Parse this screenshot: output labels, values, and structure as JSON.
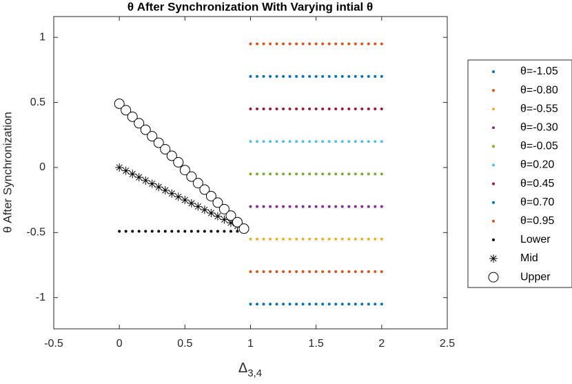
{
  "chart_data": {
    "type": "scatter",
    "title": "θ After Synchronization With Varying intial θ",
    "xlabel": {
      "text": "Δ",
      "subscript": "3,4"
    },
    "ylabel": "θ After Synchronization",
    "xlim": [
      -0.5,
      2.5
    ],
    "ylim": [
      -1.24,
      1.16
    ],
    "xticks": [
      -0.5,
      0,
      0.5,
      1,
      1.5,
      2,
      2.5
    ],
    "yticks": [
      -1,
      -0.5,
      0,
      0.5,
      1
    ],
    "legend": "outside-right",
    "series": [
      {
        "name": "θ=-1.05",
        "color": "#0072BD",
        "marker": "dot",
        "x": [
          1,
          1.05,
          1.1,
          1.15,
          1.2,
          1.25,
          1.3,
          1.35,
          1.4,
          1.45,
          1.5,
          1.55,
          1.6,
          1.65,
          1.7,
          1.75,
          1.8,
          1.85,
          1.9,
          1.95,
          2
        ],
        "values": [
          -1.05,
          -1.05,
          -1.05,
          -1.05,
          -1.05,
          -1.05,
          -1.05,
          -1.05,
          -1.05,
          -1.05,
          -1.05,
          -1.05,
          -1.05,
          -1.05,
          -1.05,
          -1.05,
          -1.05,
          -1.05,
          -1.05,
          -1.05,
          -1.05
        ]
      },
      {
        "name": "θ=-0.80",
        "color": "#D95319",
        "marker": "dot",
        "x": [
          1,
          1.05,
          1.1,
          1.15,
          1.2,
          1.25,
          1.3,
          1.35,
          1.4,
          1.45,
          1.5,
          1.55,
          1.6,
          1.65,
          1.7,
          1.75,
          1.8,
          1.85,
          1.9,
          1.95,
          2
        ],
        "values": [
          -0.8,
          -0.8,
          -0.8,
          -0.8,
          -0.8,
          -0.8,
          -0.8,
          -0.8,
          -0.8,
          -0.8,
          -0.8,
          -0.8,
          -0.8,
          -0.8,
          -0.8,
          -0.8,
          -0.8,
          -0.8,
          -0.8,
          -0.8,
          -0.8
        ]
      },
      {
        "name": "θ=-0.55",
        "color": "#EDB120",
        "marker": "dot",
        "x": [
          1,
          1.05,
          1.1,
          1.15,
          1.2,
          1.25,
          1.3,
          1.35,
          1.4,
          1.45,
          1.5,
          1.55,
          1.6,
          1.65,
          1.7,
          1.75,
          1.8,
          1.85,
          1.9,
          1.95,
          2
        ],
        "values": [
          -0.55,
          -0.55,
          -0.55,
          -0.55,
          -0.55,
          -0.55,
          -0.55,
          -0.55,
          -0.55,
          -0.55,
          -0.55,
          -0.55,
          -0.55,
          -0.55,
          -0.55,
          -0.55,
          -0.55,
          -0.55,
          -0.55,
          -0.55,
          -0.55
        ]
      },
      {
        "name": "θ=-0.30",
        "color": "#7E2F8E",
        "marker": "dot",
        "x": [
          1,
          1.05,
          1.1,
          1.15,
          1.2,
          1.25,
          1.3,
          1.35,
          1.4,
          1.45,
          1.5,
          1.55,
          1.6,
          1.65,
          1.7,
          1.75,
          1.8,
          1.85,
          1.9,
          1.95,
          2
        ],
        "values": [
          -0.3,
          -0.3,
          -0.3,
          -0.3,
          -0.3,
          -0.3,
          -0.3,
          -0.3,
          -0.3,
          -0.3,
          -0.3,
          -0.3,
          -0.3,
          -0.3,
          -0.3,
          -0.3,
          -0.3,
          -0.3,
          -0.3,
          -0.3,
          -0.3
        ]
      },
      {
        "name": "θ=-0.05",
        "color": "#77AC30",
        "marker": "dot",
        "x": [
          1,
          1.05,
          1.1,
          1.15,
          1.2,
          1.25,
          1.3,
          1.35,
          1.4,
          1.45,
          1.5,
          1.55,
          1.6,
          1.65,
          1.7,
          1.75,
          1.8,
          1.85,
          1.9,
          1.95,
          2
        ],
        "values": [
          -0.05,
          -0.05,
          -0.05,
          -0.05,
          -0.05,
          -0.05,
          -0.05,
          -0.05,
          -0.05,
          -0.05,
          -0.05,
          -0.05,
          -0.05,
          -0.05,
          -0.05,
          -0.05,
          -0.05,
          -0.05,
          -0.05,
          -0.05,
          -0.05
        ]
      },
      {
        "name": "θ=0.20",
        "color": "#4DBEEE",
        "marker": "dot",
        "x": [
          1,
          1.05,
          1.1,
          1.15,
          1.2,
          1.25,
          1.3,
          1.35,
          1.4,
          1.45,
          1.5,
          1.55,
          1.6,
          1.65,
          1.7,
          1.75,
          1.8,
          1.85,
          1.9,
          1.95,
          2
        ],
        "values": [
          0.2,
          0.2,
          0.2,
          0.2,
          0.2,
          0.2,
          0.2,
          0.2,
          0.2,
          0.2,
          0.2,
          0.2,
          0.2,
          0.2,
          0.2,
          0.2,
          0.2,
          0.2,
          0.2,
          0.2,
          0.2
        ]
      },
      {
        "name": "θ=0.45",
        "color": "#A2142F",
        "marker": "dot",
        "x": [
          1,
          1.05,
          1.1,
          1.15,
          1.2,
          1.25,
          1.3,
          1.35,
          1.4,
          1.45,
          1.5,
          1.55,
          1.6,
          1.65,
          1.7,
          1.75,
          1.8,
          1.85,
          1.9,
          1.95,
          2
        ],
        "values": [
          0.45,
          0.45,
          0.45,
          0.45,
          0.45,
          0.45,
          0.45,
          0.45,
          0.45,
          0.45,
          0.45,
          0.45,
          0.45,
          0.45,
          0.45,
          0.45,
          0.45,
          0.45,
          0.45,
          0.45,
          0.45
        ]
      },
      {
        "name": "θ=0.70",
        "color": "#0072BD",
        "marker": "dot",
        "x": [
          1,
          1.05,
          1.1,
          1.15,
          1.2,
          1.25,
          1.3,
          1.35,
          1.4,
          1.45,
          1.5,
          1.55,
          1.6,
          1.65,
          1.7,
          1.75,
          1.8,
          1.85,
          1.9,
          1.95,
          2
        ],
        "values": [
          0.7,
          0.7,
          0.7,
          0.7,
          0.7,
          0.7,
          0.7,
          0.7,
          0.7,
          0.7,
          0.7,
          0.7,
          0.7,
          0.7,
          0.7,
          0.7,
          0.7,
          0.7,
          0.7,
          0.7,
          0.7
        ]
      },
      {
        "name": "θ=0.95",
        "color": "#D95319",
        "marker": "dot",
        "x": [
          1,
          1.05,
          1.1,
          1.15,
          1.2,
          1.25,
          1.3,
          1.35,
          1.4,
          1.45,
          1.5,
          1.55,
          1.6,
          1.65,
          1.7,
          1.75,
          1.8,
          1.85,
          1.9,
          1.95,
          2
        ],
        "values": [
          0.95,
          0.95,
          0.95,
          0.95,
          0.95,
          0.95,
          0.95,
          0.95,
          0.95,
          0.95,
          0.95,
          0.95,
          0.95,
          0.95,
          0.95,
          0.95,
          0.95,
          0.95,
          0.95,
          0.95,
          0.95
        ]
      },
      {
        "name": "Lower",
        "color": "#000000",
        "marker": "dot",
        "x": [
          0,
          0.05,
          0.1,
          0.15,
          0.2,
          0.25,
          0.3,
          0.35,
          0.4,
          0.45,
          0.5,
          0.55,
          0.6,
          0.65,
          0.7,
          0.75,
          0.8,
          0.85,
          0.9,
          0.95
        ],
        "values": [
          -0.49,
          -0.49,
          -0.49,
          -0.49,
          -0.49,
          -0.49,
          -0.49,
          -0.49,
          -0.49,
          -0.49,
          -0.49,
          -0.49,
          -0.49,
          -0.49,
          -0.49,
          -0.49,
          -0.49,
          -0.49,
          -0.49,
          -0.49
        ]
      },
      {
        "name": "Mid",
        "color": "#000000",
        "marker": "star",
        "x": [
          0,
          0.05,
          0.1,
          0.15,
          0.2,
          0.25,
          0.3,
          0.35,
          0.4,
          0.45,
          0.5,
          0.55,
          0.6,
          0.65,
          0.7,
          0.75,
          0.8,
          0.85,
          0.9,
          0.95
        ],
        "values": [
          0,
          -0.025,
          -0.05,
          -0.075,
          -0.1,
          -0.125,
          -0.15,
          -0.175,
          -0.2,
          -0.225,
          -0.25,
          -0.275,
          -0.3,
          -0.325,
          -0.35,
          -0.375,
          -0.4,
          -0.425,
          -0.45,
          -0.475
        ]
      },
      {
        "name": "Upper",
        "color": "#000000",
        "marker": "circle",
        "x": [
          0,
          0.05,
          0.1,
          0.15,
          0.2,
          0.25,
          0.3,
          0.35,
          0.4,
          0.45,
          0.5,
          0.55,
          0.6,
          0.65,
          0.7,
          0.75,
          0.8,
          0.85,
          0.9,
          0.95
        ],
        "values": [
          0.49,
          0.44,
          0.39,
          0.34,
          0.29,
          0.24,
          0.19,
          0.14,
          0.09,
          0.04,
          -0.02,
          -0.07,
          -0.12,
          -0.17,
          -0.22,
          -0.27,
          -0.32,
          -0.37,
          -0.42,
          -0.47
        ]
      }
    ]
  }
}
